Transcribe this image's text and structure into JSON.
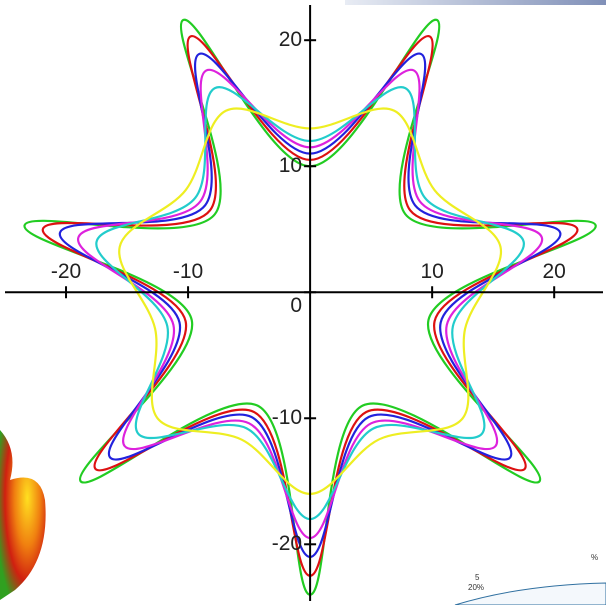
{
  "chart_data": {
    "type": "parametric",
    "xlim": [
      -25,
      24
    ],
    "ylim": [
      -24.5,
      22
    ],
    "xticks": [
      -20,
      -10,
      10,
      20
    ],
    "yticks": [
      -20,
      -10,
      0,
      10,
      20
    ],
    "series": [
      {
        "color": "#22cc22",
        "x": [
          0,
          4.3,
          18.8,
          9.7,
          23.4,
          7.8,
          10.4,
          0,
          -10.4,
          -7.8,
          -23.4,
          -9.7,
          -18.8,
          -4.3
        ],
        "y": [
          -24,
          -9.0,
          -15.0,
          -2.2,
          5.3,
          6.2,
          21.6,
          10,
          21.6,
          6.2,
          5.3,
          -2.2,
          -15.0,
          -9.0
        ]
      },
      {
        "color": "#dd1111",
        "x": [
          0,
          4.6,
          17.6,
          10.2,
          21.9,
          8.2,
          9.8,
          0,
          -9.8,
          -8.2,
          -21.9,
          -10.2,
          -17.6,
          -4.6
        ],
        "y": [
          -22.5,
          -9.5,
          -14.0,
          -2.3,
          5.0,
          6.5,
          20.3,
          10.5,
          20.3,
          6.5,
          5.0,
          -2.3,
          -14.0,
          -9.5
        ]
      },
      {
        "color": "#2222dd",
        "x": [
          0,
          4.8,
          16.4,
          10.7,
          20.5,
          8.6,
          9.1,
          0,
          -9.1,
          -8.6,
          -20.5,
          -10.7,
          -16.4,
          -4.8
        ],
        "y": [
          -21,
          -9.9,
          -13.1,
          -2.4,
          4.7,
          6.9,
          18.9,
          11,
          18.9,
          6.9,
          4.7,
          -2.4,
          -13.1,
          -9.9
        ]
      },
      {
        "color": "#dd22dd",
        "x": [
          0,
          5.0,
          15.2,
          11.2,
          19.0,
          9.0,
          8.5,
          0,
          -8.5,
          -9.0,
          -19.0,
          -11.2,
          -15.2,
          -5.0
        ],
        "y": [
          -19.5,
          -10.4,
          -12.2,
          -2.6,
          4.3,
          7.2,
          17.6,
          11.5,
          17.6,
          7.2,
          4.3,
          -2.6,
          -12.2,
          -10.4
        ]
      },
      {
        "color": "#22cccc",
        "x": [
          0,
          5.2,
          14.1,
          11.7,
          17.5,
          9.4,
          7.8,
          0,
          -7.8,
          -9.4,
          -17.5,
          -11.7,
          -14.1,
          -5.2
        ],
        "y": [
          -18,
          -10.8,
          -11.2,
          -2.7,
          4.0,
          7.5,
          16.2,
          12,
          16.2,
          7.5,
          4.0,
          -2.7,
          -11.2,
          -10.8
        ]
      },
      {
        "color": "#eeee22",
        "x": [
          0,
          5.6,
          12.5,
          12.7,
          15.6,
          10.2,
          6.9,
          0,
          -6.9,
          -10.2,
          -15.6,
          -12.7,
          -12.5,
          -5.6
        ],
        "y": [
          -16,
          -11.7,
          -10.0,
          -2.9,
          3.6,
          8.1,
          14.4,
          13,
          14.4,
          8.1,
          3.6,
          -2.9,
          -10.0,
          -11.7
        ]
      }
    ],
    "annotations": [
      "%",
      "5",
      "20%"
    ]
  }
}
